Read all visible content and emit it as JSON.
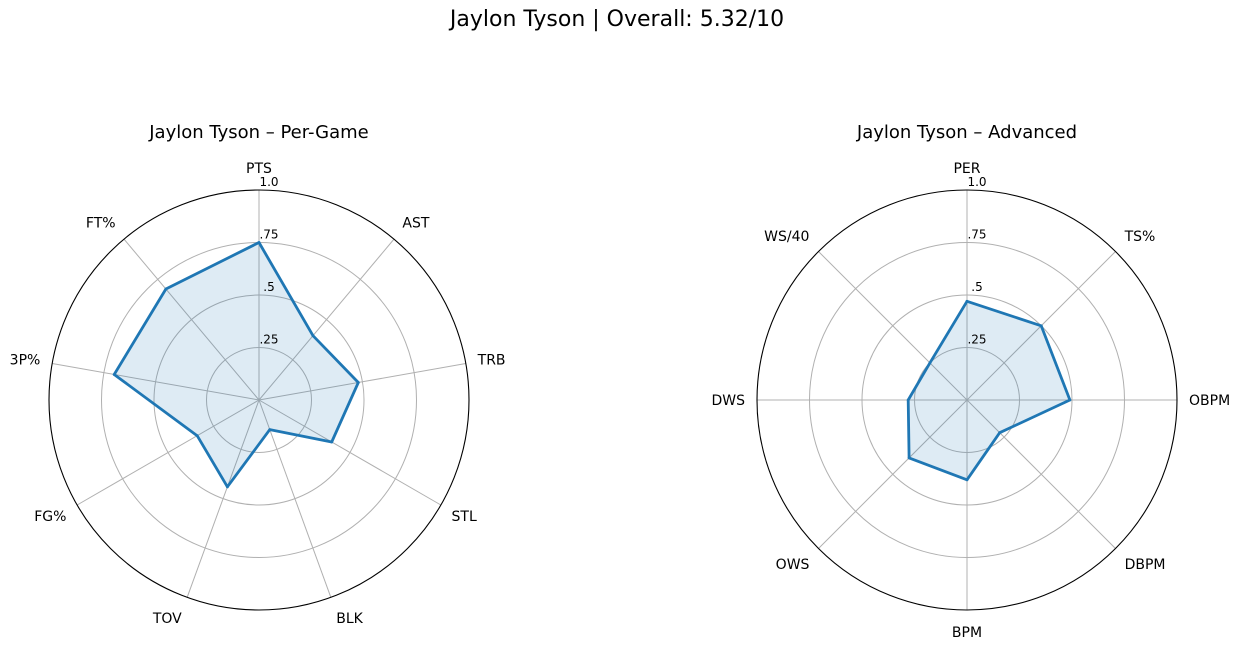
{
  "figure": {
    "title": "Jaylon Tyson | Overall: 5.32/10"
  },
  "chart_data": [
    {
      "type": "radar",
      "title": "Jaylon Tyson – Per-Game",
      "categories": [
        "PTS",
        "AST",
        "TRB",
        "STL",
        "BLK",
        "TOV",
        "FG%",
        "3P%",
        "FT%"
      ],
      "values": [
        0.75,
        0.4,
        0.48,
        0.4,
        0.15,
        0.44,
        0.34,
        0.7,
        0.69
      ],
      "rlim": [
        0,
        1.0
      ],
      "rticks": [
        ".25",
        ".5",
        ".75",
        "1.0"
      ],
      "grid": true,
      "line_color": "#1f77b4",
      "fill_color": "#1f77b4"
    },
    {
      "type": "radar",
      "title": "Jaylon Tyson – Advanced",
      "categories": [
        "PER",
        "TS%",
        "OBPM",
        "DBPM",
        "BPM",
        "OWS",
        "DWS",
        "WS/40"
      ],
      "values": [
        0.47,
        0.5,
        0.49,
        0.22,
        0.38,
        0.39,
        0.28,
        0.25
      ],
      "rlim": [
        0,
        1.0
      ],
      "rticks": [
        ".25",
        ".5",
        ".75",
        "1.0"
      ],
      "grid": true,
      "line_color": "#1f77b4",
      "fill_color": "#1f77b4"
    }
  ]
}
